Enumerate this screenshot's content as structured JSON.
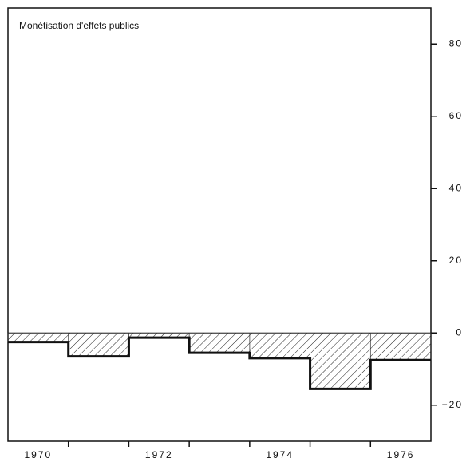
{
  "chart_data": {
    "type": "step-bar",
    "title": "Monétisation d'effets publics",
    "categories": [
      "1970",
      null,
      "1972",
      null,
      "1974",
      null,
      "1976"
    ],
    "values": [
      -2.5,
      -6.5,
      -1.3,
      -5.5,
      -7,
      -15.5,
      -7.5
    ],
    "color": "#111111",
    "ylim": [
      -30,
      90
    ],
    "yticks": [
      {
        "value": -20,
        "label": "−20"
      },
      0,
      20,
      40,
      60,
      80
    ]
  }
}
